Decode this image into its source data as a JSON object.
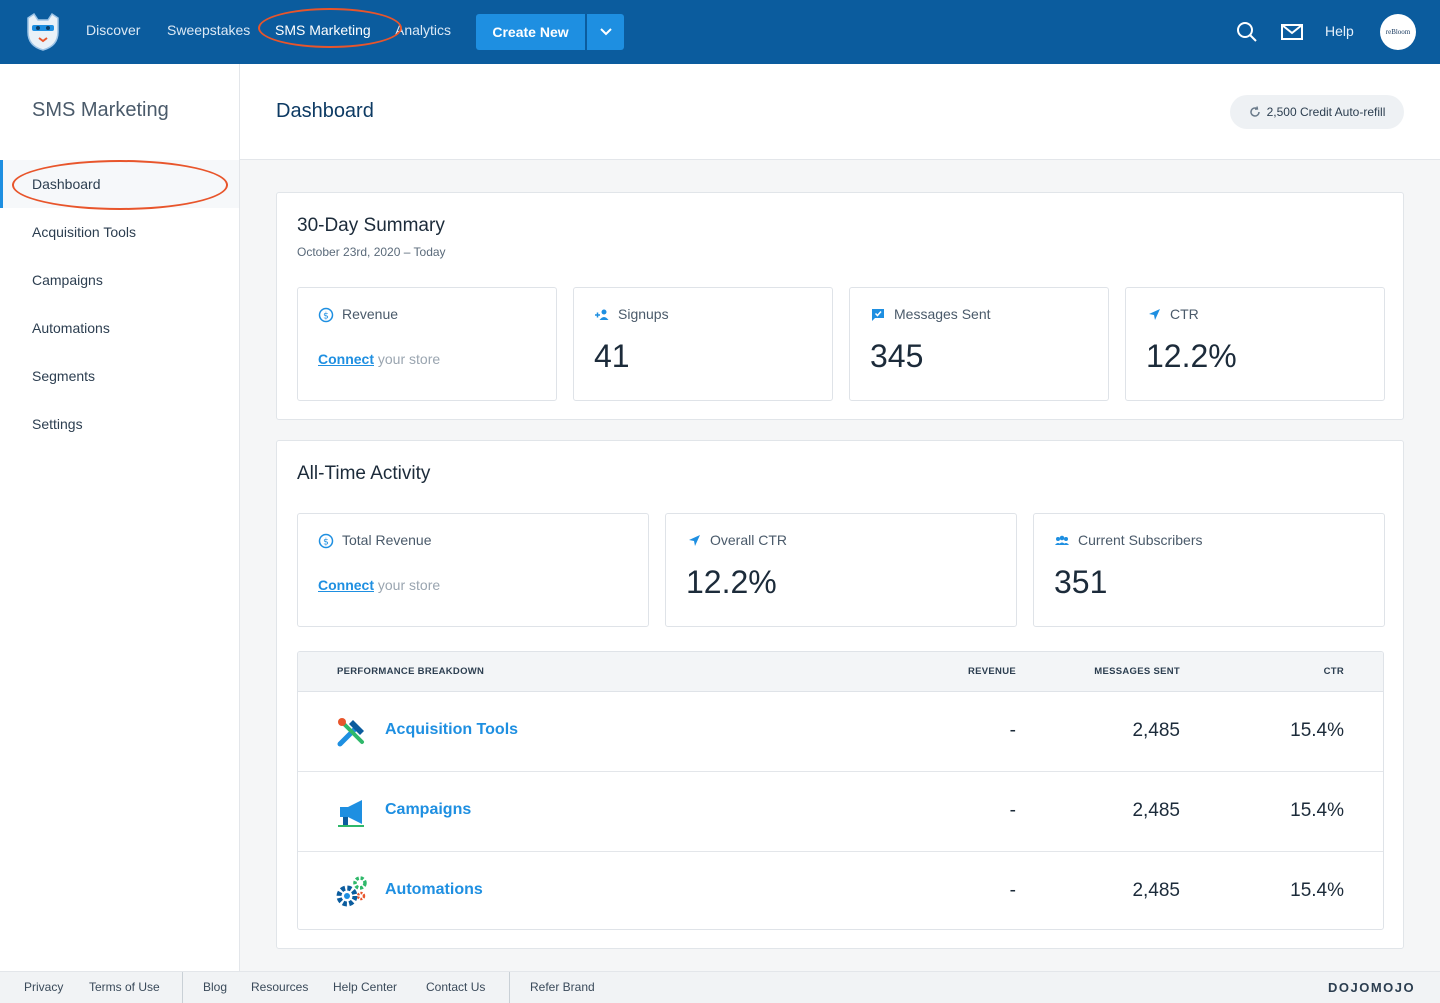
{
  "nav": {
    "links": [
      "Discover",
      "Sweepstakes",
      "SMS Marketing",
      "Analytics"
    ],
    "create_label": "Create New",
    "help_label": "Help",
    "avatar_text": "reBloom"
  },
  "sidebar": {
    "title": "SMS Marketing",
    "items": [
      "Dashboard",
      "Acquisition Tools",
      "Campaigns",
      "Automations",
      "Segments",
      "Settings"
    ]
  },
  "header": {
    "title": "Dashboard",
    "credit": "2,500 Credit Auto-refill"
  },
  "summary": {
    "title": "30-Day Summary",
    "subtitle": "October 23rd, 2020 – Today",
    "revenue_label": "Revenue",
    "connect_link": "Connect",
    "connect_rest": " your store",
    "signups_label": "Signups",
    "signups_value": "41",
    "messages_label": "Messages Sent",
    "messages_value": "345",
    "ctr_label": "CTR",
    "ctr_value": "12.2%"
  },
  "alltime": {
    "title": "All-Time Activity",
    "revenue_label": "Total Revenue",
    "connect_link": "Connect",
    "connect_rest": " your store",
    "ctr_label": "Overall CTR",
    "ctr_value": "12.2%",
    "subs_label": "Current Subscribers",
    "subs_value": "351"
  },
  "table": {
    "headers": [
      "PERFORMANCE BREAKDOWN",
      "REVENUE",
      "MESSAGES SENT",
      "CTR"
    ],
    "rows": [
      {
        "name": "Acquisition Tools",
        "icon": "tools-icon",
        "revenue": "-",
        "messages": "2,485",
        "ctr": "15.4%"
      },
      {
        "name": "Campaigns",
        "icon": "megaphone-icon",
        "revenue": "-",
        "messages": "2,485",
        "ctr": "15.4%"
      },
      {
        "name": "Automations",
        "icon": "gears-icon",
        "revenue": "-",
        "messages": "2,485",
        "ctr": "15.4%"
      }
    ]
  },
  "footer": {
    "links": [
      "Privacy",
      "Terms of Use",
      "Blog",
      "Resources",
      "Help Center",
      "Contact Us",
      "Refer Brand"
    ],
    "brand": "DOJOMOJO"
  },
  "colors": {
    "nav_bg": "#0b5c9e",
    "accent": "#1e8fe1",
    "annotation": "#e8552b"
  }
}
